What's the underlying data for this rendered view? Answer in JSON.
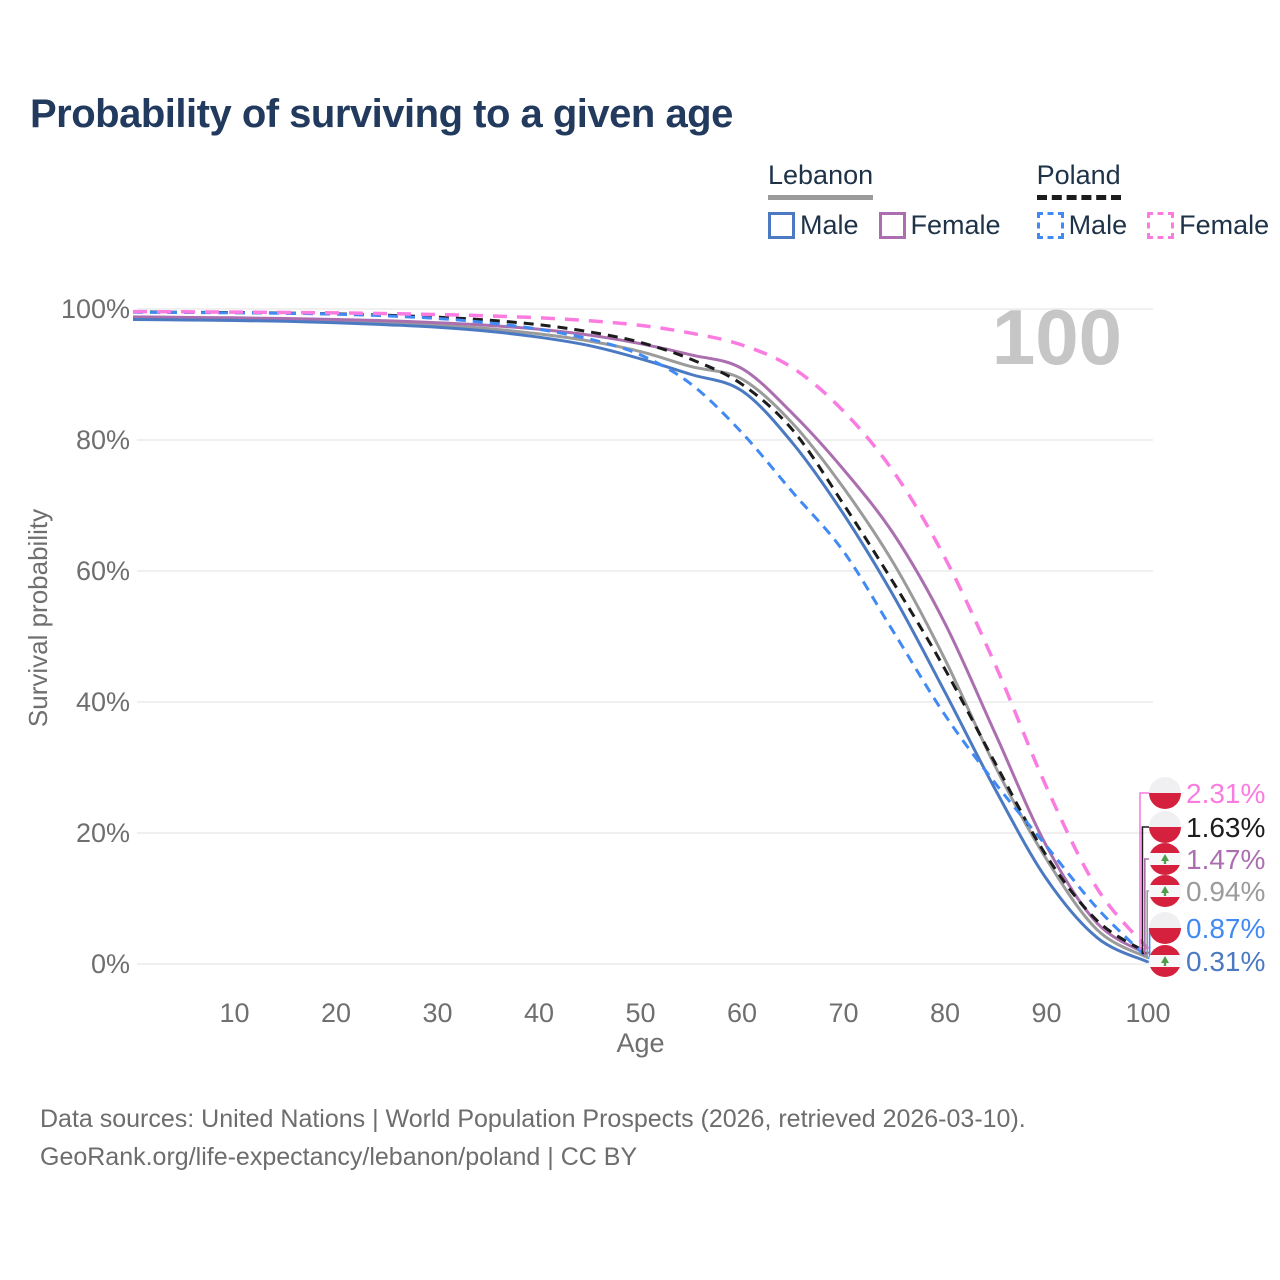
{
  "title": "Probability of surviving to a given age",
  "watermark": "100",
  "legend": {
    "groups": [
      {
        "country": "Lebanon",
        "line_style": "solid",
        "underline_color": "#9b9b9b",
        "items": [
          {
            "label": "Male",
            "color": "#4c7ac2"
          },
          {
            "label": "Female",
            "color": "#ab6fb0"
          }
        ]
      },
      {
        "country": "Poland",
        "line_style": "dashed",
        "underline_color": "#1c1c1c",
        "items": [
          {
            "label": "Male",
            "color": "#418af4"
          },
          {
            "label": "Female",
            "color": "#fb7ce1"
          }
        ]
      }
    ]
  },
  "chart_data": {
    "type": "line",
    "xlabel": "Age",
    "ylabel": "Survival probability",
    "xlim": [
      0,
      100
    ],
    "ylim": [
      0,
      100
    ],
    "grid": "horizontal",
    "legend_position": "top-right",
    "xticks": [
      10,
      20,
      30,
      40,
      50,
      60,
      70,
      80,
      90,
      100
    ],
    "yticks": [
      {
        "value": 0,
        "label": "0%"
      },
      {
        "value": 20,
        "label": "20%"
      },
      {
        "value": 40,
        "label": "40%"
      },
      {
        "value": 60,
        "label": "60%"
      },
      {
        "value": 80,
        "label": "80%"
      },
      {
        "value": 100,
        "label": "100%"
      }
    ],
    "x": [
      0,
      5,
      10,
      15,
      20,
      25,
      30,
      35,
      40,
      45,
      50,
      55,
      60,
      65,
      70,
      75,
      80,
      85,
      90,
      95,
      100
    ],
    "series": [
      {
        "name": "Lebanon",
        "country": "Lebanon",
        "sex": "both",
        "color": "#9b9b9b",
        "line_style": "solid",
        "flag": "lebanon",
        "end_label": "0.94%",
        "values": [
          98.6,
          98.52,
          98.45,
          98.32,
          98.1,
          97.85,
          97.5,
          97.0,
          96.2,
          95.1,
          93.5,
          91.2,
          89.3,
          82.5,
          72.7,
          61.0,
          46.5,
          30.0,
          16.0,
          5.2,
          0.94
        ]
      },
      {
        "name": "Lebanon Female",
        "country": "Lebanon",
        "sex": "female",
        "color": "#ab6fb0",
        "line_style": "solid",
        "flag": "lebanon",
        "end_label": "1.47%",
        "values": [
          98.8,
          98.72,
          98.65,
          98.55,
          98.4,
          98.2,
          97.9,
          97.5,
          96.9,
          96.0,
          94.7,
          93.0,
          90.9,
          84.0,
          75.5,
          65.5,
          52.0,
          35.0,
          18.0,
          6.2,
          1.47
        ]
      },
      {
        "name": "Lebanon Male",
        "country": "Lebanon",
        "sex": "male",
        "color": "#4c7ac2",
        "line_style": "solid",
        "flag": "lebanon",
        "end_label": "0.31%",
        "values": [
          98.4,
          98.32,
          98.25,
          98.12,
          97.9,
          97.6,
          97.2,
          96.6,
          95.7,
          94.4,
          92.4,
          90.0,
          87.5,
          79.5,
          68.7,
          56.0,
          41.5,
          26.5,
          13.0,
          4.0,
          0.31
        ]
      },
      {
        "name": "Poland",
        "country": "Poland",
        "sex": "both",
        "color": "#1c1c1c",
        "line_style": "dashed",
        "flag": "poland",
        "end_label": "1.63%",
        "values": [
          99.55,
          99.5,
          99.45,
          99.37,
          99.25,
          99.05,
          98.75,
          98.3,
          97.6,
          96.5,
          94.9,
          92.3,
          88.5,
          81.5,
          70.2,
          58.0,
          45.0,
          30.5,
          16.5,
          6.6,
          1.63
        ]
      },
      {
        "name": "Poland Male",
        "country": "Poland",
        "sex": "male",
        "color": "#418af4",
        "line_style": "dashed",
        "flag": "poland",
        "end_label": "0.87%",
        "values": [
          99.5,
          99.46,
          99.42,
          99.35,
          99.2,
          98.95,
          98.55,
          97.9,
          96.9,
          95.4,
          93.0,
          88.5,
          81.1,
          72.0,
          63.0,
          50.5,
          38.0,
          27.5,
          18.0,
          8.5,
          0.87
        ]
      },
      {
        "name": "Poland Female",
        "country": "Poland",
        "sex": "female",
        "color": "#fb7ce1",
        "line_style": "dashed",
        "flag": "poland",
        "end_label": "2.31%",
        "values": [
          99.6,
          99.57,
          99.53,
          99.47,
          99.4,
          99.3,
          99.15,
          98.95,
          98.65,
          98.2,
          97.5,
          96.3,
          94.5,
          91.0,
          84.4,
          75.0,
          62.0,
          45.5,
          27.0,
          11.5,
          2.31
        ]
      }
    ]
  },
  "flags": {
    "poland": {
      "top": "#f0f0f2",
      "bottom": "#d5213e"
    },
    "lebanon": {
      "background": "#f7f7f9",
      "band": "#d5213e",
      "cedar": "#4f9d4a"
    }
  },
  "colors": {
    "title": "#223a5e",
    "legend_text": "#1e3248",
    "axis_text": "#6f6f6f",
    "grid": "#e7e7e7",
    "watermark": "#c6c6c6",
    "footer": "#6d6d6d"
  },
  "footer": {
    "line1": "Data sources: United Nations | World Population Prospects (2026, retrieved 2026-03-10).",
    "line2": "GeoRank.org/life-expectancy/lebanon/poland | CC BY"
  }
}
